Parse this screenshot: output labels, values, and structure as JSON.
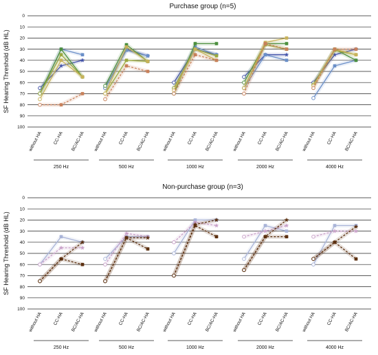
{
  "chart_data": [
    {
      "type": "line",
      "title": "Purchase group (n=5)",
      "ylabel": "SF Hearing Threshold (dB HL)",
      "yticks": [
        0,
        10,
        20,
        30,
        40,
        50,
        60,
        70,
        80,
        90,
        100
      ],
      "ylim": [
        100,
        0
      ],
      "y_inverted": true,
      "grid": true,
      "conditions": [
        "without HA",
        "CC-HA",
        "BC/AC-HA"
      ],
      "frequencies": [
        "250 Hz",
        "500 Hz",
        "1000 Hz",
        "2000 Hz",
        "4000 Hz"
      ],
      "series": [
        {
          "color": "#4050a8",
          "marker": "star",
          "dashed": false,
          "values": [
            [
              65,
              45,
              40
            ],
            [
              65,
              30,
              36
            ],
            [
              60,
              30,
              35
            ],
            [
              55,
              35,
              35
            ],
            [
              60,
              35,
              30
            ]
          ]
        },
        {
          "color": "#6a8fc8",
          "marker": "square",
          "dashed": false,
          "values": [
            [
              70,
              30,
              35
            ],
            [
              65,
              31,
              36
            ],
            [
              65,
              28,
              35
            ],
            [
              65,
              35,
              40
            ],
            [
              74,
              45,
              40
            ]
          ]
        },
        {
          "color": "#4c8f3e",
          "marker": "square",
          "dashed": false,
          "values": [
            [
              70,
              30,
              55
            ],
            [
              63,
              26,
              41
            ],
            [
              70,
              25,
              25
            ],
            [
              60,
              25,
              25
            ],
            [
              62,
              30,
              40
            ]
          ]
        },
        {
          "color": "#9aa83e",
          "marker": "square",
          "dashed": false,
          "values": [
            [
              70,
              35,
              55
            ],
            [
              70,
              40,
              41
            ],
            [
              65,
              30,
              36
            ],
            [
              65,
              26,
              30
            ],
            [
              62,
              31,
              35
            ]
          ]
        },
        {
          "color": "#c8b25a",
          "marker": "square",
          "dashed": false,
          "values": [
            [
              75,
              40,
              55
            ],
            [
              70,
              28,
              41
            ],
            [
              67,
              30,
              40
            ],
            [
              65,
              24,
              20
            ],
            [
              63,
              30,
              35
            ]
          ]
        },
        {
          "color": "#c8805a",
          "marker": "square",
          "dashed": true,
          "values": [
            [
              80,
              80,
              70
            ],
            [
              75,
              45,
              50
            ],
            [
              70,
              35,
              40
            ],
            [
              70,
              25,
              30
            ],
            [
              65,
              30,
              30
            ]
          ]
        }
      ]
    },
    {
      "type": "line",
      "title": "Non-purchase group (n=3)",
      "ylabel": "SF Hearing Threshold (dB HL)",
      "yticks": [
        0,
        10,
        20,
        30,
        40,
        50,
        60,
        70,
        80,
        90,
        100
      ],
      "ylim": [
        100,
        0
      ],
      "y_inverted": true,
      "grid": true,
      "conditions": [
        "without HA",
        "CC-HA",
        "BC/AC-HA"
      ],
      "frequencies": [
        "250 Hz",
        "500 Hz",
        "1000 Hz",
        "2000 Hz",
        "4000 Hz"
      ],
      "series": [
        {
          "color": "#a9b4d8",
          "marker": "square",
          "dashed": false,
          "values": [
            [
              60,
              35,
              40
            ],
            [
              55,
              35,
              35
            ],
            [
              50,
              20,
              20
            ],
            [
              55,
              25,
              30
            ],
            [
              60,
              25,
              25
            ]
          ]
        },
        {
          "color": "#c8a0c8",
          "marker": "star",
          "dashed": true,
          "values": [
            [
              60,
              45,
              45
            ],
            [
              60,
              32,
              35
            ],
            [
              40,
              22,
              25
            ],
            [
              35,
              30,
              25
            ],
            [
              35,
              30,
              30
            ]
          ]
        },
        {
          "color": "#5c3010",
          "marker": "square",
          "dashed": true,
          "values": [
            [
              75,
              55,
              60
            ],
            [
              75,
              36,
              46
            ],
            [
              70,
              25,
              35
            ],
            [
              65,
              35,
              35
            ],
            [
              55,
              40,
              55
            ]
          ]
        },
        {
          "color": "#5c3010",
          "marker": "star",
          "dashed": true,
          "values": [
            [
              75,
              55,
              40
            ],
            [
              75,
              36,
              36
            ],
            [
              70,
              24,
              20
            ],
            [
              65,
              35,
              20
            ],
            [
              55,
              40,
              26
            ]
          ]
        }
      ]
    }
  ]
}
